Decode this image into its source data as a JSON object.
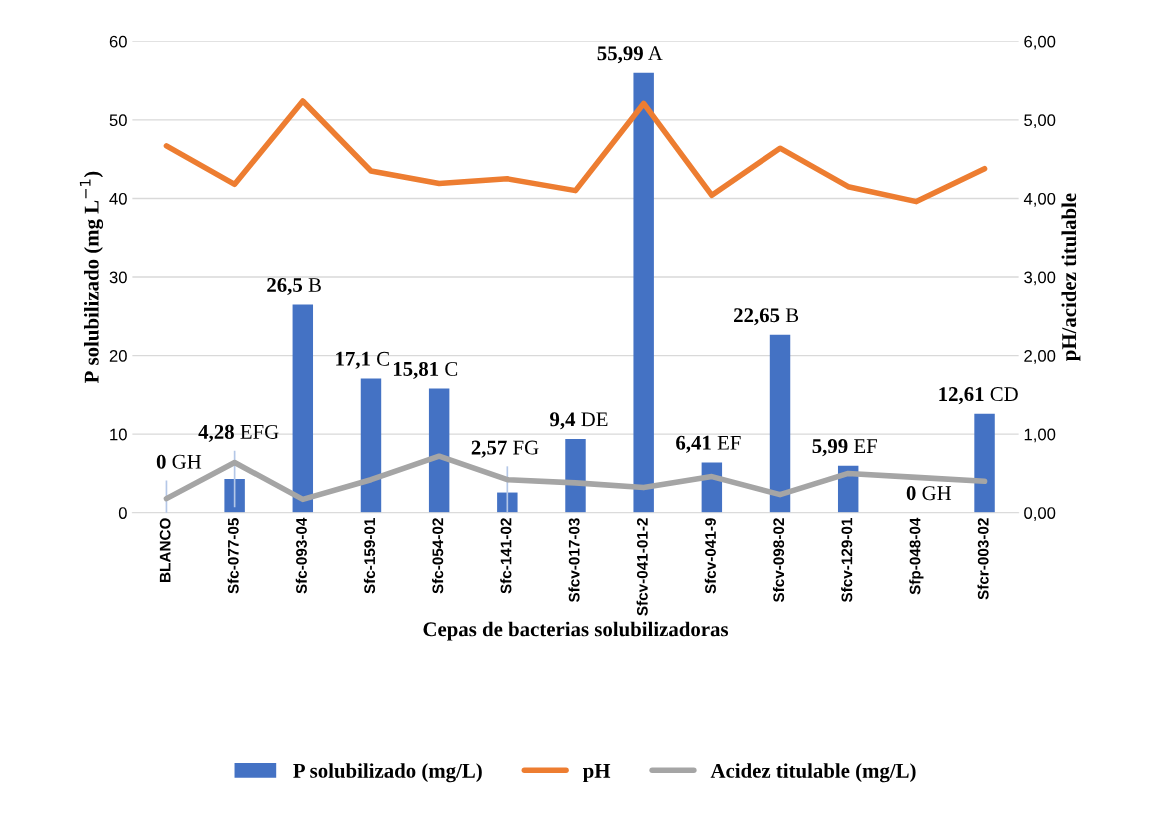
{
  "chart_data": {
    "type": "bar",
    "xlabel": "Cepas de bacterias solubilizadoras",
    "ylabel": "P solubilizado (mg L$^{−1}$)",
    "y2label": "pH/acidez titulable",
    "categories": [
      "BLANCO",
      "Sfc-077-05",
      "Sfc-093-04",
      "Sfc-159-01",
      "Sfc-054-02",
      "Sfc-141-02",
      "Sfcv-017-03",
      "Sfcv-041-01-2",
      "Sfcv-041-9",
      "Sfcv-098-02",
      "Sfcv-129-01",
      "Sfp-048-04",
      "Sfcr-003-02"
    ],
    "series": [
      {
        "name": "P solubilizado (mg/L)",
        "color": "#4472c4",
        "values": [
          0,
          4.28,
          26.5,
          17.1,
          15.81,
          2.57,
          9.4,
          55.99,
          6.41,
          22.65,
          5.99,
          0,
          12.61
        ],
        "value_labels": [
          "0 GH",
          "4,28 EFG",
          "26,5 B",
          "17,1 C",
          "15,81 C",
          "2,57 FG",
          "9,4 DE",
          "55,99 A",
          "6,41 EF",
          "22,65 B",
          "5,99 EF",
          "0 GH",
          "12,61 CD"
        ],
        "errors": [
          [
            0,
            4.0
          ],
          [
            0.8,
            7.8
          ],
          null,
          null,
          null,
          [
            0,
            5.8
          ],
          null,
          null,
          null,
          null,
          null,
          null,
          null
        ]
      },
      {
        "name": "pH",
        "type": "line",
        "axis": "y2",
        "color": "#ed7d31",
        "values": [
          4.67,
          4.18,
          5.24,
          4.35,
          4.19,
          4.25,
          4.1,
          5.21,
          4.04,
          4.64,
          4.15,
          3.96,
          4.38
        ]
      },
      {
        "name": "Acidez titulable (mg/L)",
        "type": "line",
        "axis": "y2",
        "color": "#a5a5a5",
        "values": [
          0.18,
          0.64,
          0.17,
          0.42,
          0.72,
          0.42,
          0.38,
          0.32,
          0.46,
          0.23,
          0.5,
          0.45,
          0.4
        ]
      }
    ],
    "ylim": [
      0,
      60
    ],
    "yticks": [
      0,
      10,
      20,
      30,
      40,
      50,
      60
    ],
    "y2lim": [
      0,
      6
    ],
    "y2ticks": [
      {
        "value": 0,
        "label": "0,00"
      },
      {
        "value": 1,
        "label": "1,00"
      },
      {
        "value": 2,
        "label": "2,00"
      },
      {
        "value": 3,
        "label": "3,00"
      },
      {
        "value": 4,
        "label": "4,00"
      },
      {
        "value": 5,
        "label": "5,00"
      },
      {
        "value": 6,
        "label": "6,00"
      }
    ],
    "grid": "y",
    "legend": "bottom",
    "marker": "none",
    "line_style": "solid"
  }
}
